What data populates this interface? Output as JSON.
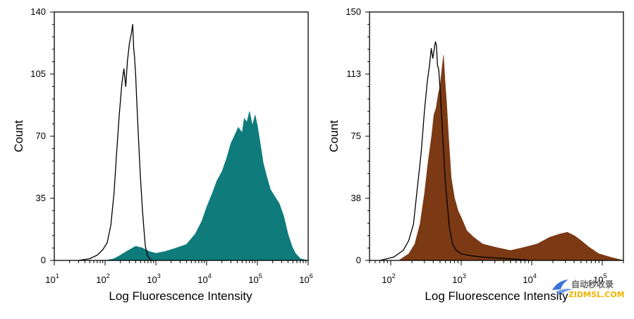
{
  "chart_data": [
    {
      "type": "area",
      "xlabel": "Log Fluorescence Intensity",
      "ylabel": "Count",
      "x_scale": "log",
      "xlim": [
        10,
        1000000
      ],
      "ylim": [
        0,
        140
      ],
      "x_ticks": [
        {
          "value": 10,
          "base": "10",
          "exp": "1"
        },
        {
          "value": 100,
          "base": "10",
          "exp": "2"
        },
        {
          "value": 1000,
          "base": "10",
          "exp": "3"
        },
        {
          "value": 10000,
          "base": "10",
          "exp": "4"
        },
        {
          "value": 100000,
          "base": "10",
          "exp": "5"
        },
        {
          "value": 1000000,
          "base": "10",
          "exp": "6"
        }
      ],
      "y_ticks": [
        "0",
        "35",
        "70",
        "105",
        "140"
      ],
      "grid": false,
      "legend": "none",
      "series": [
        {
          "style": "line",
          "color": "#000000",
          "points": [
            [
              30,
              0
            ],
            [
              50,
              1
            ],
            [
              70,
              3
            ],
            [
              90,
              6
            ],
            [
              110,
              10
            ],
            [
              130,
              20
            ],
            [
              150,
              38
            ],
            [
              170,
              62
            ],
            [
              190,
              82
            ],
            [
              215,
              100
            ],
            [
              235,
              108
            ],
            [
              255,
              98
            ],
            [
              275,
              112
            ],
            [
              300,
              122
            ],
            [
              330,
              128
            ],
            [
              350,
              133
            ],
            [
              365,
              120
            ],
            [
              380,
              115
            ],
            [
              400,
              105
            ],
            [
              420,
              90
            ],
            [
              450,
              72
            ],
            [
              490,
              50
            ],
            [
              540,
              30
            ],
            [
              580,
              18
            ],
            [
              620,
              8
            ],
            [
              680,
              3
            ],
            [
              750,
              1
            ],
            [
              850,
              0
            ]
          ]
        },
        {
          "style": "area",
          "color": "#0f7b7b",
          "points": [
            [
              100,
              0
            ],
            [
              150,
              1
            ],
            [
              200,
              3
            ],
            [
              300,
              6
            ],
            [
              400,
              8
            ],
            [
              550,
              7
            ],
            [
              750,
              5
            ],
            [
              1000,
              4
            ],
            [
              1500,
              5
            ],
            [
              2500,
              7
            ],
            [
              4000,
              9
            ],
            [
              6000,
              15
            ],
            [
              8000,
              22
            ],
            [
              10000,
              30
            ],
            [
              13000,
              38
            ],
            [
              16000,
              45
            ],
            [
              20000,
              50
            ],
            [
              25000,
              58
            ],
            [
              30000,
              66
            ],
            [
              35000,
              70
            ],
            [
              42000,
              75
            ],
            [
              50000,
              72
            ],
            [
              55000,
              80
            ],
            [
              62000,
              78
            ],
            [
              70000,
              84
            ],
            [
              80000,
              76
            ],
            [
              90000,
              82
            ],
            [
              100000,
              76
            ],
            [
              115000,
              65
            ],
            [
              130000,
              55
            ],
            [
              150000,
              48
            ],
            [
              180000,
              40
            ],
            [
              220000,
              36
            ],
            [
              270000,
              32
            ],
            [
              330000,
              25
            ],
            [
              400000,
              15
            ],
            [
              480000,
              8
            ],
            [
              560000,
              4
            ],
            [
              700000,
              1
            ],
            [
              1000000,
              0
            ]
          ]
        }
      ]
    },
    {
      "type": "area",
      "xlabel": "Log Fluorescence Intensity",
      "ylabel": "Count",
      "x_scale": "log",
      "xlim": [
        50,
        200000
      ],
      "ylim": [
        0,
        150
      ],
      "x_ticks": [
        {
          "value": 100,
          "base": "10",
          "exp": "2"
        },
        {
          "value": 1000,
          "base": "10",
          "exp": "3"
        },
        {
          "value": 10000,
          "base": "10",
          "exp": "4"
        },
        {
          "value": 100000,
          "base": "10",
          "exp": "5"
        }
      ],
      "y_ticks": [
        "0",
        "38",
        "75",
        "113",
        "150"
      ],
      "grid": false,
      "legend": "none",
      "series": [
        {
          "style": "line",
          "color": "#000000",
          "points": [
            [
              70,
              0
            ],
            [
              110,
              2
            ],
            [
              150,
              6
            ],
            [
              180,
              12
            ],
            [
              210,
              22
            ],
            [
              240,
              45
            ],
            [
              270,
              65
            ],
            [
              300,
              90
            ],
            [
              330,
              108
            ],
            [
              355,
              118
            ],
            [
              375,
              128
            ],
            [
              395,
              122
            ],
            [
              415,
              128
            ],
            [
              430,
              132
            ],
            [
              445,
              130
            ],
            [
              460,
              118
            ],
            [
              480,
              115
            ],
            [
              510,
              98
            ],
            [
              545,
              75
            ],
            [
              600,
              45
            ],
            [
              680,
              20
            ],
            [
              750,
              10
            ],
            [
              850,
              6
            ],
            [
              1000,
              4
            ],
            [
              1300,
              3
            ],
            [
              2000,
              2
            ],
            [
              5000,
              1
            ],
            [
              10000,
              0
            ]
          ]
        },
        {
          "style": "area",
          "color": "#7b3a14",
          "points": [
            [
              130,
              0
            ],
            [
              180,
              4
            ],
            [
              220,
              10
            ],
            [
              260,
              22
            ],
            [
              300,
              40
            ],
            [
              340,
              60
            ],
            [
              380,
              75
            ],
            [
              410,
              88
            ],
            [
              440,
              92
            ],
            [
              470,
              100
            ],
            [
              500,
              105
            ],
            [
              530,
              115
            ],
            [
              560,
              124
            ],
            [
              590,
              108
            ],
            [
              620,
              95
            ],
            [
              660,
              75
            ],
            [
              720,
              50
            ],
            [
              800,
              38
            ],
            [
              900,
              30
            ],
            [
              1000,
              26
            ],
            [
              1200,
              18
            ],
            [
              1500,
              14
            ],
            [
              2000,
              10
            ],
            [
              3000,
              8
            ],
            [
              5000,
              6
            ],
            [
              8000,
              8
            ],
            [
              12000,
              10
            ],
            [
              18000,
              14
            ],
            [
              25000,
              16
            ],
            [
              32000,
              17
            ],
            [
              40000,
              15
            ],
            [
              50000,
              12
            ],
            [
              65000,
              8
            ],
            [
              90000,
              4
            ],
            [
              130000,
              2
            ],
            [
              200000,
              0
            ]
          ]
        }
      ]
    }
  ],
  "watermark": {
    "line1": "自动秒收录",
    "line2": "ZIDMSL.COM",
    "line2_color": "#f0b400",
    "bird_color": "#1a5ad0"
  }
}
